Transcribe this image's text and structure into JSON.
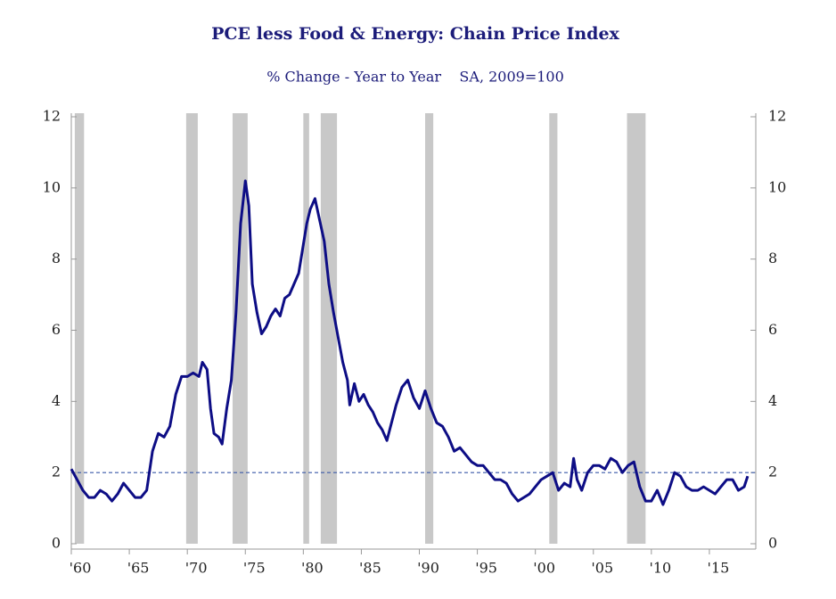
{
  "chart_data": {
    "type": "line",
    "title": "PCE less Food & Energy: Chain Price Index",
    "subtitle": "% Change - Year to Year    SA, 2009=100",
    "color": "#0d0d85",
    "recession_color": "#c8c8c8",
    "reference_line": 2,
    "reference_color": "#3a5aa8",
    "recessions": [
      [
        1960.3,
        1961.1
      ],
      [
        1969.9,
        1970.9
      ],
      [
        1973.9,
        1975.2
      ],
      [
        1980.0,
        1980.5
      ],
      [
        1981.5,
        1982.9
      ],
      [
        1990.5,
        1991.2
      ],
      [
        2001.2,
        2001.9
      ],
      [
        2007.9,
        2009.5
      ]
    ],
    "xlim": [
      1960,
      2019
    ],
    "xticks": [
      {
        "value": 1960,
        "label": "'60"
      },
      {
        "value": 1965,
        "label": "'65"
      },
      {
        "value": 1970,
        "label": "'70"
      },
      {
        "value": 1975,
        "label": "'75"
      },
      {
        "value": 1980,
        "label": "'80"
      },
      {
        "value": 1985,
        "label": "'85"
      },
      {
        "value": 1990,
        "label": "'90"
      },
      {
        "value": 1995,
        "label": "'95"
      },
      {
        "value": 2000,
        "label": "'00"
      },
      {
        "value": 2005,
        "label": "'05"
      },
      {
        "value": 2010,
        "label": "'10"
      },
      {
        "value": 2015,
        "label": "'15"
      }
    ],
    "ylim": [
      0,
      12
    ],
    "yticks": [
      0,
      2,
      4,
      6,
      8,
      10,
      12
    ],
    "y2lim": [
      0,
      12
    ],
    "y2ticks": [
      0,
      2,
      4,
      6,
      8,
      10,
      12
    ],
    "x": [
      1960.0,
      1960.5,
      1961.0,
      1961.5,
      1962.0,
      1962.5,
      1963.0,
      1963.5,
      1964.0,
      1964.5,
      1965.0,
      1965.5,
      1966.0,
      1966.5,
      1967.0,
      1967.5,
      1968.0,
      1968.5,
      1969.0,
      1969.5,
      1970.0,
      1970.5,
      1971.0,
      1971.3,
      1971.7,
      1972.0,
      1972.3,
      1972.7,
      1973.0,
      1973.4,
      1973.8,
      1974.2,
      1974.6,
      1975.0,
      1975.3,
      1975.6,
      1976.0,
      1976.4,
      1976.8,
      1977.2,
      1977.6,
      1978.0,
      1978.4,
      1978.8,
      1979.2,
      1979.6,
      1980.0,
      1980.3,
      1980.6,
      1981.0,
      1981.4,
      1981.8,
      1982.2,
      1982.6,
      1983.0,
      1983.4,
      1983.8,
      1984.0,
      1984.4,
      1984.8,
      1985.2,
      1985.6,
      1986.0,
      1986.4,
      1986.8,
      1987.2,
      1987.6,
      1988.0,
      1988.5,
      1989.0,
      1989.5,
      1990.0,
      1990.5,
      1991.0,
      1991.5,
      1992.0,
      1992.5,
      1993.0,
      1993.5,
      1994.0,
      1994.5,
      1995.0,
      1995.5,
      1996.0,
      1996.5,
      1997.0,
      1997.5,
      1998.0,
      1998.5,
      1999.0,
      1999.5,
      2000.0,
      2000.5,
      2001.0,
      2001.5,
      2002.0,
      2002.5,
      2003.0,
      2003.3,
      2003.6,
      2004.0,
      2004.5,
      2005.0,
      2005.5,
      2006.0,
      2006.5,
      2007.0,
      2007.5,
      2008.0,
      2008.5,
      2009.0,
      2009.5,
      2010.0,
      2010.5,
      2011.0,
      2011.5,
      2012.0,
      2012.5,
      2013.0,
      2013.5,
      2014.0,
      2014.5,
      2015.0,
      2015.5,
      2016.0,
      2016.5,
      2017.0,
      2017.5,
      2018.0,
      2018.3
    ],
    "values": [
      2.1,
      1.8,
      1.5,
      1.3,
      1.3,
      1.5,
      1.4,
      1.2,
      1.4,
      1.7,
      1.5,
      1.3,
      1.3,
      1.5,
      2.6,
      3.1,
      3.0,
      3.3,
      4.2,
      4.7,
      4.7,
      4.8,
      4.7,
      5.1,
      4.9,
      3.8,
      3.1,
      3.0,
      2.8,
      3.8,
      4.6,
      6.5,
      9.0,
      10.2,
      9.5,
      7.3,
      6.5,
      5.9,
      6.1,
      6.4,
      6.6,
      6.4,
      6.9,
      7.0,
      7.3,
      7.6,
      8.4,
      9.0,
      9.4,
      9.7,
      9.1,
      8.5,
      7.3,
      6.5,
      5.8,
      5.1,
      4.6,
      3.9,
      4.5,
      4.0,
      4.2,
      3.9,
      3.7,
      3.4,
      3.2,
      2.9,
      3.4,
      3.9,
      4.4,
      4.6,
      4.1,
      3.8,
      4.3,
      3.8,
      3.4,
      3.3,
      3.0,
      2.6,
      2.7,
      2.5,
      2.3,
      2.2,
      2.2,
      2.0,
      1.8,
      1.8,
      1.7,
      1.4,
      1.2,
      1.3,
      1.4,
      1.6,
      1.8,
      1.9,
      2.0,
      1.5,
      1.7,
      1.6,
      2.4,
      1.8,
      1.5,
      2.0,
      2.2,
      2.2,
      2.1,
      2.4,
      2.3,
      2.0,
      2.2,
      2.3,
      1.6,
      1.2,
      1.2,
      1.5,
      1.1,
      1.5,
      2.0,
      1.9,
      1.6,
      1.5,
      1.5,
      1.6,
      1.5,
      1.4,
      1.6,
      1.8,
      1.8,
      1.5,
      1.6,
      1.9
    ]
  }
}
